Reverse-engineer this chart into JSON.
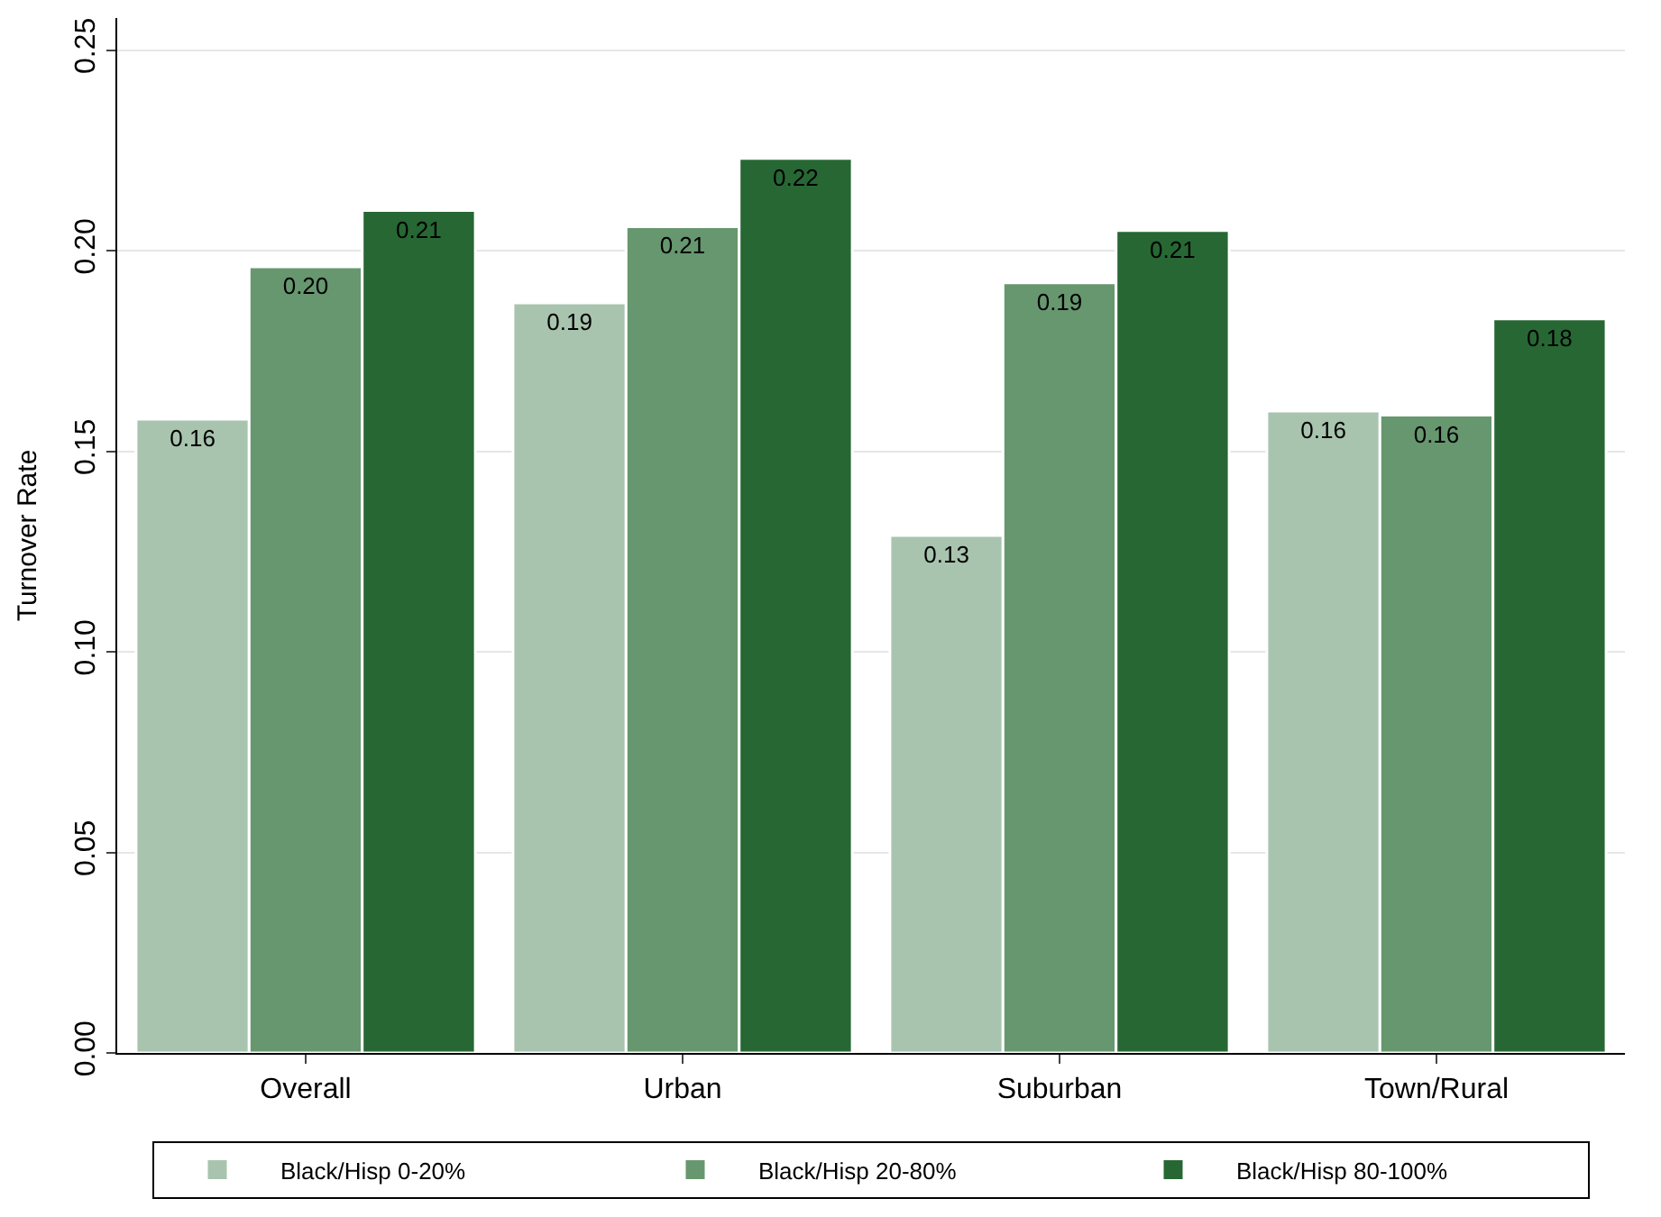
{
  "chart_data": {
    "type": "bar",
    "ylabel": "Turnover Rate",
    "categories": [
      "Overall",
      "Urban",
      "Suburban",
      "Town/Rural"
    ],
    "series": [
      {
        "name": "Black/Hisp 0-20%",
        "color": "#a8c4ae",
        "values": [
          0.158,
          0.187,
          0.129,
          0.16
        ],
        "value_labels": [
          "0.16",
          "0.19",
          "0.13",
          "0.16"
        ]
      },
      {
        "name": "Black/Hisp 20-80%",
        "color": "#67976f",
        "values": [
          0.196,
          0.206,
          0.192,
          0.159
        ],
        "value_labels": [
          "0.20",
          "0.21",
          "0.19",
          "0.16"
        ]
      },
      {
        "name": "Black/Hisp 80-100%",
        "color": "#276734",
        "values": [
          0.21,
          0.223,
          0.205,
          0.183
        ],
        "value_labels": [
          "0.21",
          "0.22",
          "0.21",
          "0.18"
        ]
      }
    ],
    "ylim": [
      0,
      0.258
    ],
    "yticks": [
      {
        "value": 0,
        "label": "0.00"
      },
      {
        "value": 0.05,
        "label": "0.05"
      },
      {
        "value": 0.1,
        "label": "0.10"
      },
      {
        "value": 0.15,
        "label": "0.15"
      },
      {
        "value": 0.2,
        "label": "0.20"
      },
      {
        "value": 0.25,
        "label": "0.25"
      }
    ],
    "grid": "y",
    "legend": "bottom"
  }
}
